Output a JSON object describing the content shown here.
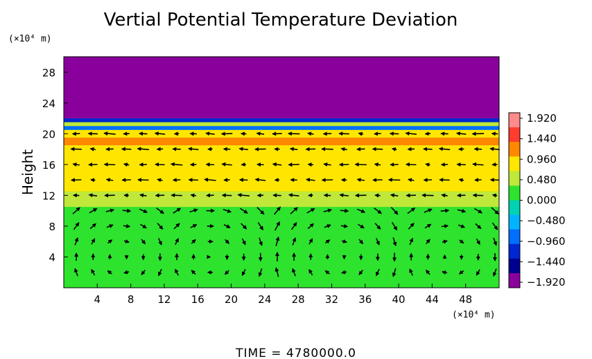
{
  "chart_data": {
    "type": "heatmap",
    "title": "Vertial Potential Temperature Deviation",
    "ylabel": "Height",
    "xlabel": "",
    "x_unit": "(×10⁴ m)",
    "y_unit": "(×10⁴ m)",
    "xlim": [
      0,
      52
    ],
    "ylim": [
      0,
      30
    ],
    "x_ticks": [
      "4",
      "8",
      "12",
      "16",
      "20",
      "24",
      "28",
      "32",
      "36",
      "40",
      "44",
      "48"
    ],
    "x_tick_values": [
      4,
      8,
      12,
      16,
      20,
      24,
      28,
      32,
      36,
      40,
      44,
      48
    ],
    "y_ticks": [
      "4",
      "8",
      "12",
      "16",
      "20",
      "24",
      "28"
    ],
    "y_tick_values": [
      4,
      8,
      12,
      16,
      20,
      24,
      28
    ],
    "footer": "TIME  =  4780000.0",
    "colorbar": {
      "labels": [
        "1.920",
        "1.440",
        "0.960",
        "0.480",
        "0.000",
        "−0.480",
        "−0.960",
        "−1.440",
        "−1.920"
      ],
      "values": [
        1.92,
        1.44,
        0.96,
        0.48,
        0.0,
        -0.48,
        -0.96,
        -1.44,
        -1.92
      ],
      "colors": [
        "#ff8a8a",
        "#ff3c2e",
        "#ff8800",
        "#ffe600",
        "#bfe83a",
        "#2ee32e",
        "#00d2b4",
        "#00b4ff",
        "#006eff",
        "#0026d2",
        "#000090",
        "#8a009c"
      ]
    },
    "bands": [
      {
        "from": 0,
        "to": 10.5,
        "value": 0.1
      },
      {
        "from": 10.5,
        "to": 12.5,
        "value": 0.45
      },
      {
        "from": 12.5,
        "to": 18.5,
        "value": 0.7
      },
      {
        "from": 18.5,
        "to": 19.5,
        "value": 1.1
      },
      {
        "from": 19.5,
        "to": 20.5,
        "value": 0.8
      },
      {
        "from": 20.5,
        "to": 21.0,
        "value": -0.9
      },
      {
        "from": 21.0,
        "to": 21.5,
        "value": 0.5
      },
      {
        "from": 21.5,
        "to": 22.0,
        "value": -1.2
      },
      {
        "from": 22.0,
        "to": 30,
        "value": -1.92
      }
    ],
    "vortex_centers_x": [
      7,
      17.5,
      33,
      46
    ],
    "wind_levels_y": [
      2,
      4,
      6,
      8,
      10,
      12,
      14,
      16,
      18,
      20
    ]
  }
}
